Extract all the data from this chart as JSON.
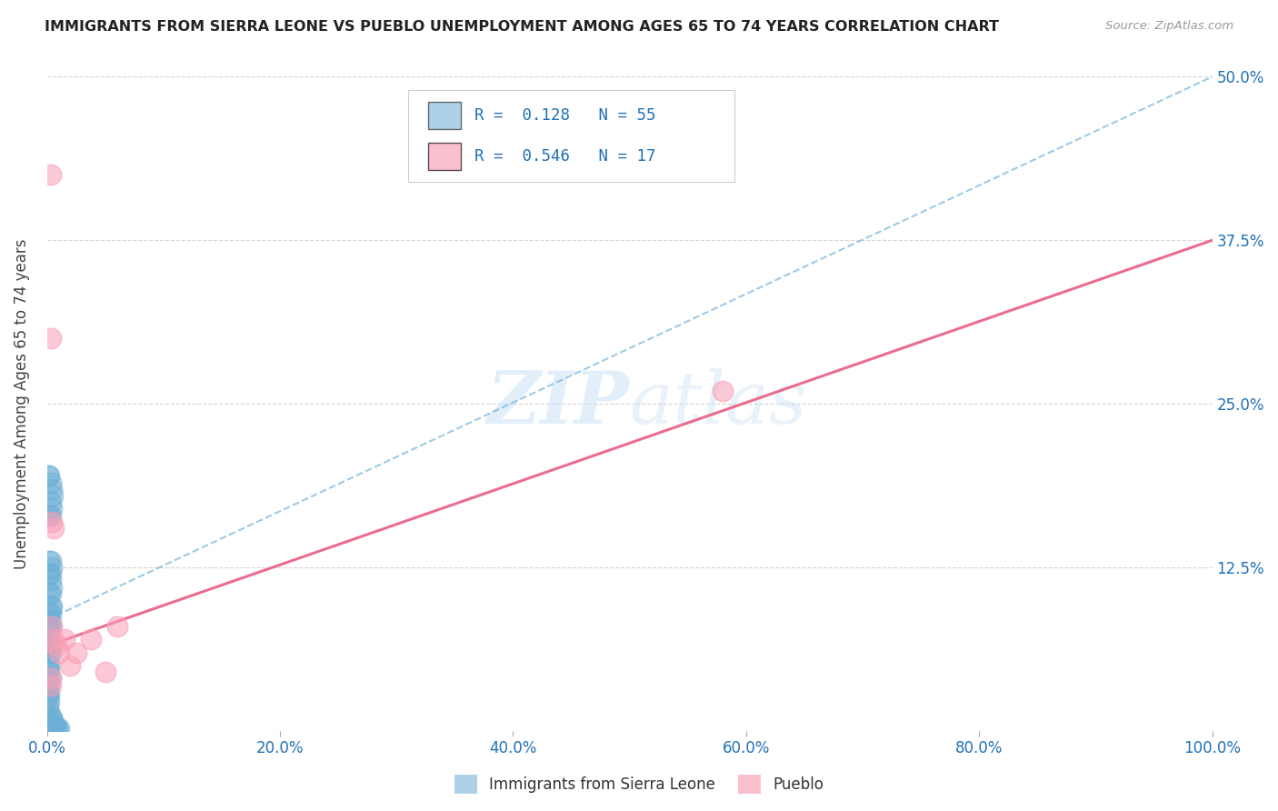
{
  "title": "IMMIGRANTS FROM SIERRA LEONE VS PUEBLO UNEMPLOYMENT AMONG AGES 65 TO 74 YEARS CORRELATION CHART",
  "source": "Source: ZipAtlas.com",
  "ylabel": "Unemployment Among Ages 65 to 74 years",
  "xlim": [
    0.0,
    1.0
  ],
  "ylim": [
    0.0,
    0.5
  ],
  "series1_color": "#6baed6",
  "series2_color": "#fa9fb5",
  "trendline1_color": "#6baed6",
  "trendline2_color": "#e8537a",
  "watermark": "ZIPatlas",
  "blue_trend": [
    0.0,
    0.085,
    1.0,
    0.5
  ],
  "pink_trend": [
    0.0,
    0.065,
    1.0,
    0.375
  ],
  "blue_points_x": [
    0.001,
    0.002,
    0.003,
    0.004,
    0.005,
    0.003,
    0.004,
    0.002,
    0.003,
    0.002,
    0.003,
    0.004,
    0.003,
    0.002,
    0.003,
    0.004,
    0.003,
    0.002,
    0.003,
    0.004,
    0.003,
    0.002,
    0.003,
    0.001,
    0.002,
    0.003,
    0.002,
    0.001,
    0.002,
    0.003,
    0.001,
    0.002,
    0.003,
    0.001,
    0.002,
    0.001,
    0.002,
    0.003,
    0.001,
    0.002,
    0.001,
    0.002,
    0.001,
    0.002,
    0.001,
    0.003,
    0.004,
    0.005,
    0.004,
    0.005,
    0.006,
    0.007,
    0.008,
    0.009,
    0.01
  ],
  "blue_points_y": [
    0.195,
    0.195,
    0.19,
    0.185,
    0.18,
    0.175,
    0.17,
    0.165,
    0.165,
    0.13,
    0.13,
    0.125,
    0.12,
    0.12,
    0.115,
    0.11,
    0.105,
    0.105,
    0.095,
    0.095,
    0.09,
    0.09,
    0.085,
    0.085,
    0.08,
    0.08,
    0.075,
    0.07,
    0.07,
    0.065,
    0.065,
    0.06,
    0.06,
    0.055,
    0.05,
    0.048,
    0.045,
    0.04,
    0.038,
    0.035,
    0.03,
    0.028,
    0.025,
    0.022,
    0.018,
    0.012,
    0.01,
    0.008,
    0.006,
    0.005,
    0.004,
    0.003,
    0.003,
    0.002,
    0.002
  ],
  "pink_points_x": [
    0.003,
    0.003,
    0.004,
    0.006,
    0.004,
    0.006,
    0.008,
    0.01,
    0.015,
    0.02,
    0.025,
    0.038,
    0.05,
    0.06,
    0.58,
    0.003,
    0.003
  ],
  "pink_points_y": [
    0.425,
    0.3,
    0.16,
    0.155,
    0.08,
    0.07,
    0.065,
    0.06,
    0.07,
    0.05,
    0.06,
    0.07,
    0.045,
    0.08,
    0.26,
    0.04,
    0.035
  ]
}
